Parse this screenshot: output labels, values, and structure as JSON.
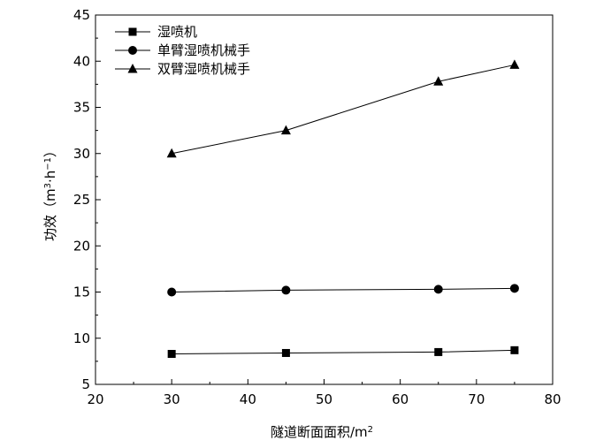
{
  "chart_data": {
    "type": "line",
    "xlabel": "隧道断面面积",
    "xlabel_unit_base": "/m",
    "xlabel_unit_exp": "2",
    "ylabel": "功效",
    "ylabel_open": "（m",
    "ylabel_m_exp": "3",
    "ylabel_mid": "·h",
    "ylabel_h_exp": "−1",
    "ylabel_close": "）",
    "xlim": [
      20,
      80
    ],
    "ylim": [
      5,
      45
    ],
    "xticks": [
      20,
      30,
      40,
      50,
      60,
      70,
      80
    ],
    "yticks": [
      5,
      10,
      15,
      20,
      25,
      30,
      35,
      40,
      45
    ],
    "grid": false,
    "legend_position": "top-left",
    "x": [
      30,
      45,
      65,
      75
    ],
    "series": [
      {
        "name": "湿喷机",
        "marker": "square",
        "values": [
          8.3,
          8.4,
          8.5,
          8.7
        ]
      },
      {
        "name": "单臂湿喷机械手",
        "marker": "circle",
        "values": [
          15.0,
          15.2,
          15.3,
          15.4
        ]
      },
      {
        "name": "双臂湿喷机械手",
        "marker": "triangle",
        "values": [
          30.0,
          32.5,
          37.8,
          39.6
        ]
      }
    ],
    "line_color": "#000000"
  }
}
